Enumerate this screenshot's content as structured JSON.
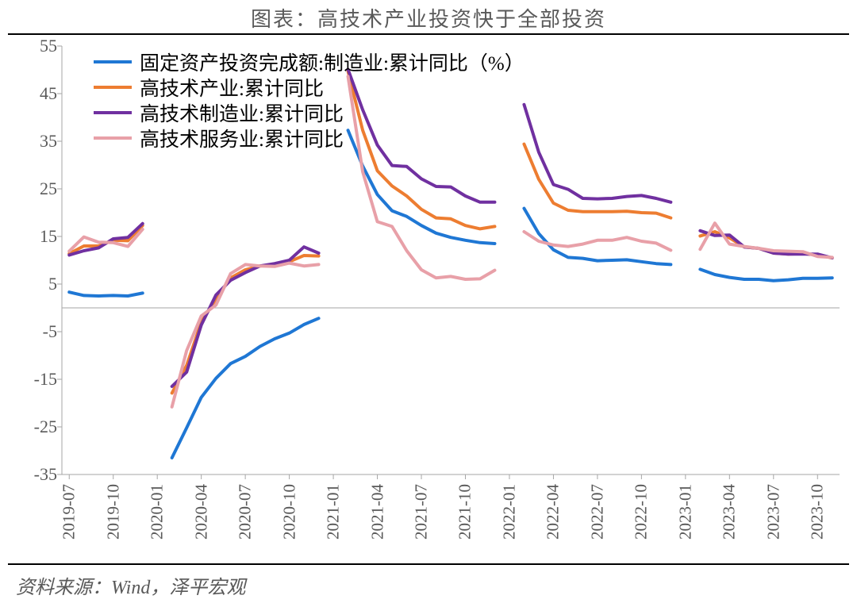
{
  "title": "图表：高技术产业投资快于全部投资",
  "source": "资料来源：Wind，泽平宏观",
  "chart": {
    "type": "line",
    "background_color": "#ffffff",
    "axis_color": "#a6a6a6",
    "zero_line_color": "#a6a6a6",
    "text_color": "#595959",
    "title_fontsize": 26,
    "tick_fontsize": 22,
    "legend_fontsize": 25,
    "line_width": 4,
    "ylim": [
      -35,
      55
    ],
    "ytick_step": 10,
    "yticks": [
      -35,
      -25,
      -15,
      -5,
      5,
      15,
      25,
      35,
      45,
      55
    ],
    "x_categories": [
      "2019-07",
      "2019-08",
      "2019-09",
      "2019-10",
      "2019-11",
      "2019-12",
      "2020-01",
      "2020-02",
      "2020-03",
      "2020-04",
      "2020-05",
      "2020-06",
      "2020-07",
      "2020-08",
      "2020-09",
      "2020-10",
      "2020-11",
      "2020-12",
      "2021-01",
      "2021-02",
      "2021-03",
      "2021-04",
      "2021-05",
      "2021-06",
      "2021-07",
      "2021-08",
      "2021-09",
      "2021-10",
      "2021-11",
      "2021-12",
      "2022-01",
      "2022-02",
      "2022-03",
      "2022-04",
      "2022-05",
      "2022-06",
      "2022-07",
      "2022-08",
      "2022-09",
      "2022-10",
      "2022-11",
      "2022-12",
      "2023-01",
      "2023-02",
      "2023-03",
      "2023-04",
      "2023-05",
      "2023-06",
      "2023-07",
      "2023-08",
      "2023-09",
      "2023-10",
      "2023-11"
    ],
    "x_tick_labels": [
      "2019-07",
      "2019-10",
      "2020-01",
      "2020-04",
      "2020-07",
      "2020-10",
      "2021-01",
      "2021-04",
      "2021-07",
      "2021-10",
      "2022-01",
      "2022-04",
      "2022-07",
      "2022-10",
      "2023-01",
      "2023-04",
      "2023-07",
      "2023-10"
    ],
    "legend_position": "top-left-inside",
    "series": [
      {
        "name": "固定资产投资完成额:制造业:累计同比（%）",
        "color": "#1f77d4",
        "values": [
          3.3,
          2.6,
          2.5,
          2.6,
          2.5,
          3.1,
          null,
          -31.5,
          -25.2,
          -18.8,
          -14.8,
          -11.7,
          -10.2,
          -8.1,
          -6.5,
          -5.3,
          -3.5,
          -2.2,
          null,
          37.3,
          29.8,
          23.8,
          20.4,
          19.2,
          17.3,
          15.7,
          14.8,
          14.2,
          13.7,
          13.5,
          null,
          20.9,
          15.6,
          12.2,
          10.6,
          10.4,
          9.9,
          10.0,
          10.1,
          9.7,
          9.3,
          9.1,
          null,
          8.1,
          7.0,
          6.4,
          6.0,
          6.0,
          5.7,
          5.9,
          6.2,
          6.2,
          6.3
        ]
      },
      {
        "name": "高技术产业:累计同比",
        "color": "#ed7d31",
        "values": [
          11.4,
          13.0,
          13.0,
          14.2,
          14.1,
          17.3,
          null,
          -17.9,
          -12.1,
          -3.0,
          1.9,
          6.3,
          8.0,
          8.8,
          9.1,
          9.7,
          11.0,
          10.9,
          null,
          49.7,
          37.3,
          28.8,
          25.6,
          23.5,
          20.7,
          18.9,
          18.7,
          17.3,
          16.6,
          17.1,
          null,
          34.4,
          27.0,
          22.0,
          20.5,
          20.2,
          20.2,
          20.2,
          20.3,
          20.0,
          19.9,
          18.9,
          null,
          15.1,
          16.0,
          14.7,
          12.8,
          12.5,
          11.5,
          11.3,
          11.4,
          11.1,
          10.5
        ]
      },
      {
        "name": "高技术制造业:累计同比",
        "color": "#7030a0",
        "values": [
          11.1,
          12.0,
          12.6,
          14.5,
          14.8,
          17.7,
          null,
          -16.5,
          -13.5,
          -3.6,
          2.7,
          5.8,
          7.4,
          8.8,
          9.3,
          10.0,
          12.8,
          11.5,
          null,
          50.1,
          41.6,
          34.2,
          29.9,
          29.7,
          27.1,
          25.5,
          25.4,
          23.5,
          22.2,
          22.2,
          null,
          42.7,
          32.7,
          25.9,
          24.9,
          23.0,
          22.9,
          23.0,
          23.4,
          23.6,
          23.0,
          22.2,
          null,
          16.2,
          15.2,
          15.3,
          12.8,
          12.5,
          11.5,
          11.3,
          11.3,
          11.3,
          10.5
        ]
      },
      {
        "name": "高技术服务业:累计同比",
        "color": "#e8a0a8",
        "values": [
          11.9,
          14.9,
          13.8,
          13.7,
          12.9,
          16.5,
          null,
          -20.8,
          -9.0,
          -1.7,
          0.6,
          7.2,
          9.1,
          8.8,
          8.7,
          9.4,
          8.8,
          9.1,
          null,
          48.6,
          28.6,
          18.1,
          17.1,
          12.0,
          8.0,
          6.3,
          6.6,
          6.0,
          6.1,
          7.9,
          null,
          16.0,
          14.0,
          13.2,
          12.9,
          13.4,
          14.2,
          14.2,
          14.8,
          14.0,
          13.6,
          12.1,
          null,
          12.3,
          17.8,
          13.4,
          12.9,
          12.5,
          12.0,
          11.9,
          11.8,
          10.8,
          10.6
        ]
      }
    ]
  }
}
